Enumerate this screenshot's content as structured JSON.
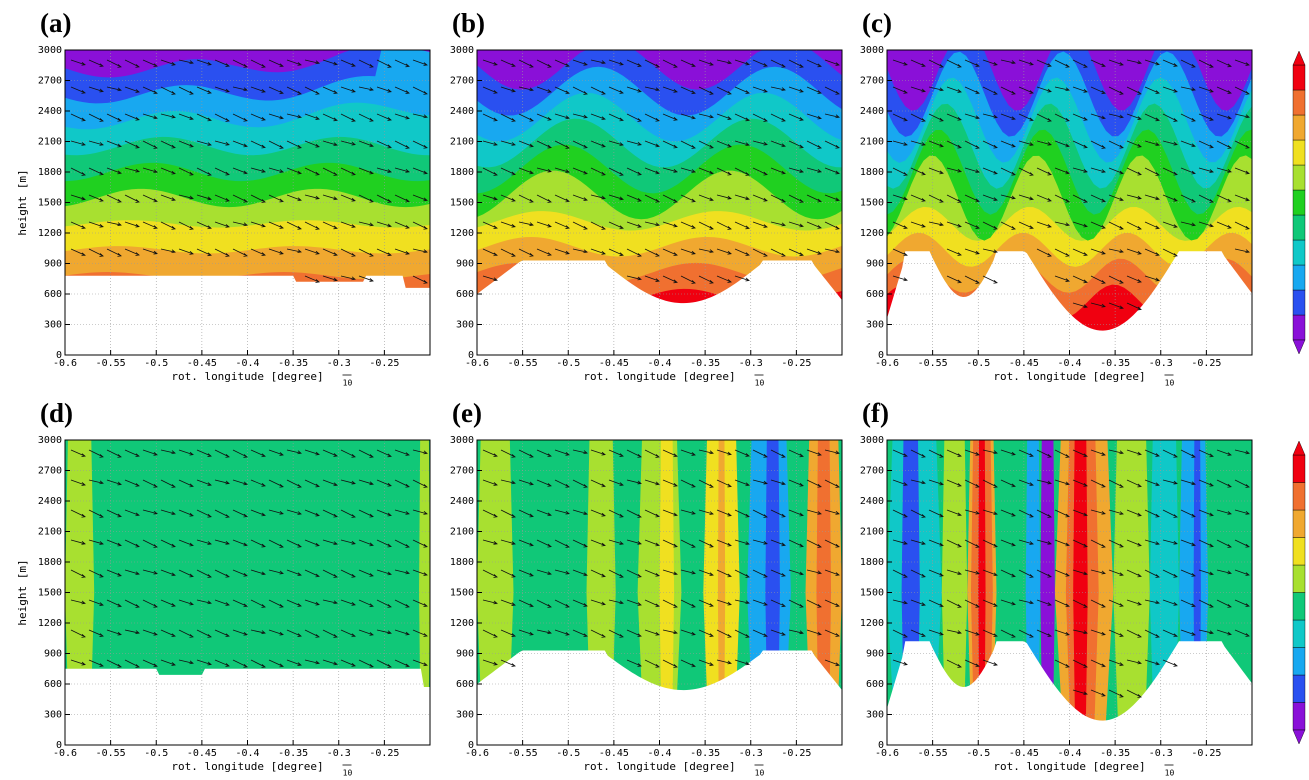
{
  "chart_data": [
    {
      "type": "contour",
      "panel_label": "(a)",
      "ylabel": "height [m]",
      "xlabel": "rot. longitude [degree]",
      "vector_ref_label": "10",
      "xlim": [
        -0.6,
        -0.2
      ],
      "ylim": [
        0,
        3000
      ],
      "xticks": [
        -0.6,
        -0.55,
        -0.5,
        -0.45,
        -0.4,
        -0.35,
        -0.3,
        -0.25
      ],
      "yticks": [
        0,
        300,
        600,
        900,
        1200,
        1500,
        1800,
        2100,
        2400,
        2700,
        3000
      ],
      "grid": true,
      "colors": [
        "#8a10d8",
        "#2a50f0",
        "#18a8f0",
        "#10c8c8",
        "#10c878",
        "#20d020",
        "#a8e030",
        "#f0e020",
        "#f0a830",
        "#f07030",
        "#f00010"
      ]
    },
    {
      "type": "contour",
      "panel_label": "(b)",
      "xlabel": "rot. longitude [degree]",
      "vector_ref_label": "10",
      "xlim": [
        -0.6,
        -0.2
      ],
      "ylim": [
        0,
        3000
      ],
      "xticks": [
        -0.6,
        -0.55,
        -0.5,
        -0.45,
        -0.4,
        -0.35,
        -0.3,
        -0.25
      ],
      "yticks": [
        0,
        300,
        600,
        900,
        1200,
        1500,
        1800,
        2100,
        2400,
        2700,
        3000
      ],
      "grid": true,
      "colors": [
        "#8a10d8",
        "#2a50f0",
        "#18a8f0",
        "#10c8c8",
        "#10c878",
        "#20d020",
        "#a8e030",
        "#f0e020",
        "#f0a830",
        "#f07030",
        "#f00010"
      ]
    },
    {
      "type": "contour",
      "panel_label": "(c)",
      "xlabel": "rot. longitude [degree]",
      "vector_ref_label": "10",
      "xlim": [
        -0.6,
        -0.2
      ],
      "ylim": [
        0,
        3000
      ],
      "xticks": [
        -0.6,
        -0.55,
        -0.5,
        -0.45,
        -0.4,
        -0.35,
        -0.3,
        -0.25
      ],
      "yticks": [
        0,
        300,
        600,
        900,
        1200,
        1500,
        1800,
        2100,
        2400,
        2700,
        3000
      ],
      "grid": true,
      "colors": [
        "#8a10d8",
        "#2a50f0",
        "#18a8f0",
        "#10c8c8",
        "#10c878",
        "#20d020",
        "#a8e030",
        "#f0e020",
        "#f0a830",
        "#f07030",
        "#f00010"
      ]
    },
    {
      "type": "contour",
      "panel_label": "(d)",
      "ylabel": "height [m]",
      "xlabel": "rot. longitude [degree]",
      "vector_ref_label": "10",
      "xlim": [
        -0.6,
        -0.2
      ],
      "ylim": [
        0,
        3000
      ],
      "xticks": [
        -0.6,
        -0.55,
        -0.5,
        -0.45,
        -0.4,
        -0.35,
        -0.3,
        -0.25
      ],
      "yticks": [
        0,
        300,
        600,
        900,
        1200,
        1500,
        1800,
        2100,
        2400,
        2700,
        3000
      ],
      "grid": true,
      "colors": [
        "#8a10d8",
        "#2a50f0",
        "#18a8f0",
        "#10c8c8",
        "#10c878",
        "#a8e030",
        "#f0e020",
        "#f0a830",
        "#f07030",
        "#f00010"
      ]
    },
    {
      "type": "contour",
      "panel_label": "(e)",
      "xlabel": "rot. longitude [degree]",
      "vector_ref_label": "10",
      "xlim": [
        -0.6,
        -0.2
      ],
      "ylim": [
        0,
        3000
      ],
      "xticks": [
        -0.6,
        -0.55,
        -0.5,
        -0.45,
        -0.4,
        -0.35,
        -0.3,
        -0.25
      ],
      "yticks": [
        0,
        300,
        600,
        900,
        1200,
        1500,
        1800,
        2100,
        2400,
        2700,
        3000
      ],
      "grid": true,
      "colors": [
        "#8a10d8",
        "#2a50f0",
        "#18a8f0",
        "#10c8c8",
        "#10c878",
        "#a8e030",
        "#f0e020",
        "#f0a830",
        "#f07030",
        "#f00010"
      ]
    },
    {
      "type": "contour",
      "panel_label": "(f)",
      "xlabel": "rot. longitude [degree]",
      "vector_ref_label": "10",
      "xlim": [
        -0.6,
        -0.2
      ],
      "ylim": [
        0,
        3000
      ],
      "xticks": [
        -0.6,
        -0.55,
        -0.5,
        -0.45,
        -0.4,
        -0.35,
        -0.3,
        -0.25
      ],
      "yticks": [
        0,
        300,
        600,
        900,
        1200,
        1500,
        1800,
        2100,
        2400,
        2700,
        3000
      ],
      "grid": true,
      "colors": [
        "#8a10d8",
        "#2a50f0",
        "#18a8f0",
        "#10c8c8",
        "#10c878",
        "#a8e030",
        "#f0e020",
        "#f0a830",
        "#f07030",
        "#f00010"
      ]
    }
  ]
}
